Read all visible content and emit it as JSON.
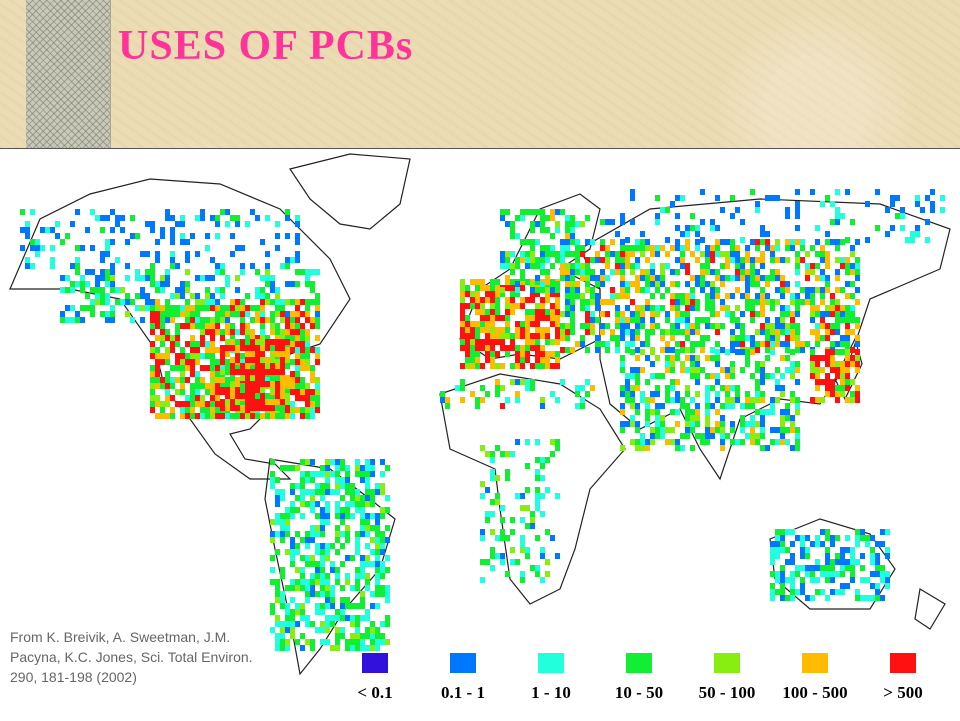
{
  "slide": {
    "title": "USES OF PCBs"
  },
  "map": {
    "citation": "From K. Breivik, A. Sweetman, J.M. Pacyna, K.C. Jones, Sci. Total Environ. 290, 181-198 (2002)",
    "legend": [
      {
        "label": "< 0.1",
        "color": "#3311dd"
      },
      {
        "label": "0.1 - 1",
        "color": "#0077ff"
      },
      {
        "label": "1 - 10",
        "color": "#22ffdd"
      },
      {
        "label": "10 - 50",
        "color": "#11ee33"
      },
      {
        "label": "50 - 100",
        "color": "#88ee11"
      },
      {
        "label": "100 - 500",
        "color": "#ffbb00"
      },
      {
        "label": "> 500",
        "color": "#ff1111"
      }
    ]
  }
}
